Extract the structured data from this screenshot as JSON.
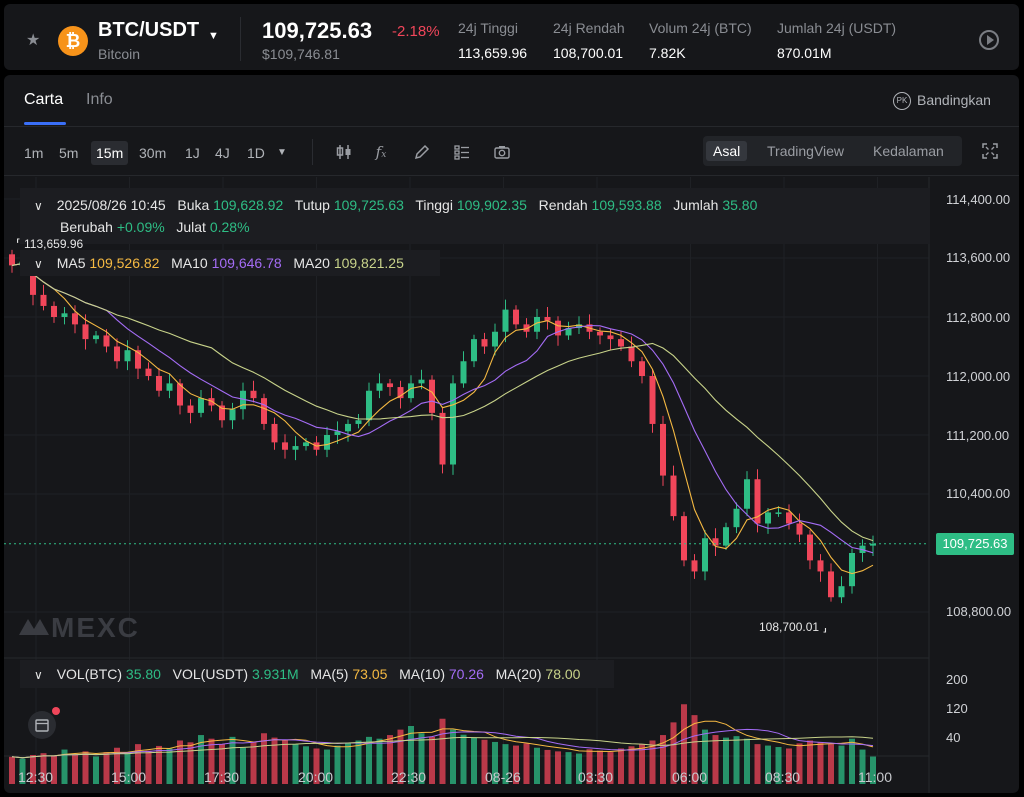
{
  "header": {
    "pair": "BTC/USDT",
    "coin_name": "Bitcoin",
    "coin_symbol": "₿",
    "price": "109,725.63",
    "change": "-2.18%",
    "price_usd": "$109,746.81",
    "stats": [
      {
        "label": "24j Tinggi",
        "value": "113,659.96"
      },
      {
        "label": "24j Rendah",
        "value": "108,700.01"
      },
      {
        "label": "Volum 24j (BTC)",
        "value": "7.82K"
      },
      {
        "label": "Jumlah 24j (USDT)",
        "value": "870.01M"
      }
    ]
  },
  "tabs": {
    "chart": "Carta",
    "info": "Info",
    "compare": "Bandingkan",
    "compare_icon": "PK"
  },
  "timeframes": [
    "1m",
    "5m",
    "15m",
    "30m",
    "1J",
    "4J",
    "1D"
  ],
  "active_timeframe": "15m",
  "views": [
    "Asal",
    "TradingView",
    "Kedalaman"
  ],
  "active_view": "Asal",
  "ohlc": {
    "datetime": "2025/08/26 10:45",
    "open_label": "Buka",
    "open": "109,628.92",
    "close_label": "Tutup",
    "close": "109,725.63",
    "high_label": "Tinggi",
    "high": "109,902.35",
    "low_label": "Rendah",
    "low": "109,593.88",
    "amount_label": "Jumlah",
    "amount": "35.80",
    "change_label": "Berubah",
    "change": "+0.09%",
    "range_label": "Julat",
    "range": "0.28%"
  },
  "ma": {
    "ma5_label": "MA5",
    "ma5": "109,526.82",
    "ma10_label": "MA10",
    "ma10": "109,646.78",
    "ma20_label": "MA20",
    "ma20": "109,821.25"
  },
  "volume": {
    "vol_btc_label": "VOL(BTC)",
    "vol_btc": "35.80",
    "vol_usdt_label": "VOL(USDT)",
    "vol_usdt": "3.931M",
    "ma5_label": "MA(5)",
    "ma5": "73.05",
    "ma10_label": "MA(10)",
    "ma10": "70.26",
    "ma20_label": "MA(20)",
    "ma20": "78.00"
  },
  "watermark": "MEXC",
  "colors": {
    "up": "#2ebd85",
    "down": "#f0465a",
    "ma5": "#f5b942",
    "ma10": "#a46cf5",
    "ma20": "#c8d38a",
    "accent": "#3a6ff7"
  },
  "chart_data": {
    "type": "candlestick",
    "price_axis": [
      "114,400.00",
      "113,600.00",
      "112,800.00",
      "112,000.00",
      "111,200.00",
      "110,400.00",
      "108,800.00"
    ],
    "price_axis_values": [
      114400,
      113600,
      112800,
      112000,
      111200,
      110400,
      108800
    ],
    "volume_axis": [
      "200",
      "120",
      "40"
    ],
    "volume_axis_values": [
      200,
      120,
      40
    ],
    "time_axis": [
      "12:30",
      "15:00",
      "17:30",
      "20:00",
      "22:30",
      "08-26",
      "03:30",
      "06:00",
      "08:30",
      "11:00"
    ],
    "current_price": "109,725.63",
    "current_price_value": 109725.63,
    "high_marker": "113,659.96",
    "high_marker_value": 113659.96,
    "low_marker": "108,700.01",
    "low_marker_value": 108700.01,
    "closes": [
      113500,
      113550,
      113100,
      112950,
      112800,
      112850,
      112700,
      112500,
      112550,
      112400,
      112200,
      112350,
      112100,
      112000,
      111800,
      111900,
      111600,
      111500,
      111700,
      111600,
      111400,
      111550,
      111800,
      111700,
      111350,
      111100,
      111000,
      111050,
      111100,
      111000,
      111200,
      111250,
      111350,
      111400,
      111800,
      111900,
      111850,
      111700,
      111900,
      111950,
      111500,
      110800,
      111900,
      112200,
      112500,
      112400,
      112600,
      112900,
      112700,
      112600,
      112800,
      112750,
      112550,
      112650,
      112700,
      112600,
      112550,
      112500,
      112400,
      112200,
      112000,
      111350,
      110650,
      110100,
      109500,
      109350,
      109800,
      109700,
      109950,
      110200,
      110600,
      110000,
      110150,
      110150,
      110000,
      109850,
      109500,
      109350,
      109000,
      109150,
      109600,
      109700,
      109725.63
    ],
    "volume_values": [
      35,
      30,
      40,
      45,
      38,
      55,
      42,
      50,
      36,
      48,
      60,
      45,
      70,
      52,
      65,
      58,
      80,
      75,
      95,
      85,
      70,
      90,
      60,
      75,
      100,
      88,
      82,
      70,
      64,
      58,
      55,
      66,
      72,
      80,
      90,
      85,
      95,
      110,
      120,
      100,
      90,
      140,
      110,
      96,
      88,
      82,
      76,
      70,
      66,
      72,
      60,
      54,
      50,
      48,
      44,
      56,
      52,
      48,
      58,
      64,
      70,
      80,
      95,
      130,
      180,
      150,
      110,
      95,
      88,
      92,
      85,
      70,
      66,
      62,
      58,
      72,
      80,
      75,
      70,
      66,
      85,
      55,
      35.8
    ]
  }
}
